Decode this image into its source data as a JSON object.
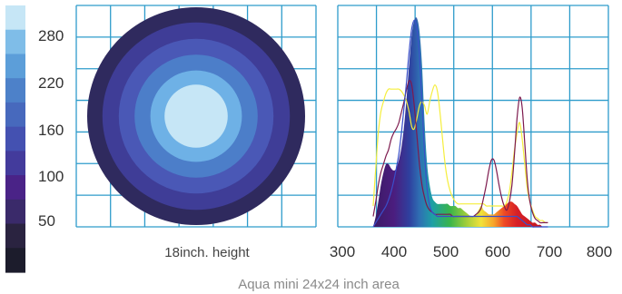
{
  "chart_data": [
    {
      "type": "heatmap",
      "caption": "18inch. height",
      "colorbar": {
        "tick_labels": [
          "280",
          "220",
          "160",
          "100",
          "50"
        ],
        "tick_values": [
          280,
          220,
          160,
          100,
          50
        ],
        "steps": [
          "#c6e6f6",
          "#7fbde8",
          "#5c9ed9",
          "#4d81c9",
          "#4769bd",
          "#4451b1",
          "#433b9c",
          "#4a2387",
          "#3a2a6a",
          "#2a2340",
          "#1c1c2c"
        ]
      },
      "rings": [
        "#2f2a5e",
        "#3f3d97",
        "#4a58b6",
        "#4c7ec9",
        "#6eb1e6",
        "#c6e6f6"
      ]
    },
    {
      "type": "line",
      "x_tick_labels": [
        "300",
        "400",
        "500",
        "600",
        "700",
        "800"
      ],
      "xlim": [
        300,
        800
      ],
      "ylim": [
        0,
        1
      ],
      "x": [
        360,
        365,
        370,
        375,
        380,
        385,
        390,
        395,
        400,
        405,
        410,
        415,
        420,
        425,
        430,
        435,
        440,
        445,
        450,
        455,
        460,
        465,
        470,
        475,
        480,
        485,
        490,
        495,
        500,
        505,
        510,
        515,
        520,
        525,
        530,
        535,
        540,
        545,
        550,
        555,
        560,
        565,
        570,
        575,
        580,
        585,
        590,
        595,
        600,
        605,
        610,
        615,
        620,
        625,
        630,
        635,
        640,
        645,
        650,
        655,
        660,
        665,
        670,
        675,
        680,
        685,
        690,
        695,
        700
      ],
      "series": [
        {
          "color": "spectrum",
          "values": [
            0.0,
            0.05,
            0.12,
            0.2,
            0.26,
            0.3,
            0.3,
            0.28,
            0.27,
            0.28,
            0.32,
            0.38,
            0.48,
            0.62,
            0.78,
            0.92,
            0.99,
            1.0,
            0.94,
            0.78,
            0.5,
            0.3,
            0.2,
            0.14,
            0.12,
            0.11,
            0.11,
            0.11,
            0.11,
            0.11,
            0.1,
            0.1,
            0.1,
            0.09,
            0.09,
            0.08,
            0.07,
            0.06,
            0.05,
            0.05,
            0.06,
            0.08,
            0.1,
            0.08,
            0.07,
            0.06,
            0.06,
            0.06,
            0.07,
            0.08,
            0.09,
            0.1,
            0.11,
            0.12,
            0.12,
            0.11,
            0.1,
            0.08,
            0.06,
            0.05,
            0.04,
            0.03,
            0.02,
            0.02,
            0.01,
            0.01,
            0.0,
            0.0,
            0.0
          ]
        },
        {
          "color": "#f5ee3c",
          "values": [
            0.1,
            0.28,
            0.45,
            0.55,
            0.6,
            0.64,
            0.66,
            0.66,
            0.66,
            0.66,
            0.66,
            0.65,
            0.63,
            0.6,
            0.55,
            0.48,
            0.47,
            0.52,
            0.58,
            0.6,
            0.58,
            0.54,
            0.6,
            0.65,
            0.68,
            0.65,
            0.55,
            0.42,
            0.3,
            0.22,
            0.17,
            0.14,
            0.12,
            0.11,
            0.11,
            0.11,
            0.11,
            0.11,
            0.11,
            0.11,
            0.11,
            0.11,
            0.11,
            0.11,
            0.1,
            0.1,
            0.1,
            0.1,
            0.1,
            0.1,
            0.1,
            0.1,
            0.12,
            0.17,
            0.26,
            0.37,
            0.45,
            0.5,
            0.42,
            0.3,
            0.18,
            0.12,
            0.08,
            0.05,
            0.04,
            0.03,
            0.03,
            0.02,
            0.02
          ]
        },
        {
          "color": "#7d1a4e",
          "values": [
            0.05,
            0.12,
            0.2,
            0.26,
            0.3,
            0.34,
            0.37,
            0.42,
            0.45,
            0.47,
            0.5,
            0.55,
            0.6,
            0.66,
            0.7,
            0.68,
            0.58,
            0.44,
            0.3,
            0.2,
            0.14,
            0.1,
            0.08,
            0.07,
            0.06,
            0.06,
            0.06,
            0.06,
            0.06,
            0.06,
            0.06,
            0.05,
            0.05,
            0.05,
            0.05,
            0.05,
            0.05,
            0.05,
            0.05,
            0.05,
            0.06,
            0.07,
            0.09,
            0.14,
            0.2,
            0.27,
            0.32,
            0.32,
            0.27,
            0.2,
            0.14,
            0.1,
            0.08,
            0.12,
            0.2,
            0.35,
            0.52,
            0.62,
            0.57,
            0.4,
            0.22,
            0.12,
            0.07,
            0.04,
            0.03,
            0.02,
            0.02,
            0.02,
            0.02
          ]
        },
        {
          "color": "#3a4fc9",
          "values": [
            0.0,
            0.02,
            0.04,
            0.06,
            0.08,
            0.1,
            0.13,
            0.17,
            0.22,
            0.28,
            0.35,
            0.45,
            0.57,
            0.7,
            0.84,
            0.95,
            0.99,
            0.95,
            0.82,
            0.6,
            0.35,
            0.18,
            0.1,
            0.07,
            0.06,
            0.05,
            0.05,
            0.05,
            0.05,
            0.05,
            0.05,
            0.05,
            0.05,
            0.05,
            0.05,
            0.05,
            0.05,
            0.05,
            0.05,
            0.05,
            0.05,
            0.05,
            0.05,
            0.05,
            0.05,
            0.05,
            0.05,
            0.05,
            0.05,
            0.05,
            0.05,
            0.05,
            0.05,
            0.05,
            0.05,
            0.05,
            0.05,
            0.04,
            0.03,
            0.02,
            0.01,
            0.01,
            0.0,
            0.0,
            0.0,
            0.0,
            0.0,
            0.0,
            0.0
          ]
        }
      ]
    }
  ],
  "footer": "Aqua mini 24x24 inch area"
}
